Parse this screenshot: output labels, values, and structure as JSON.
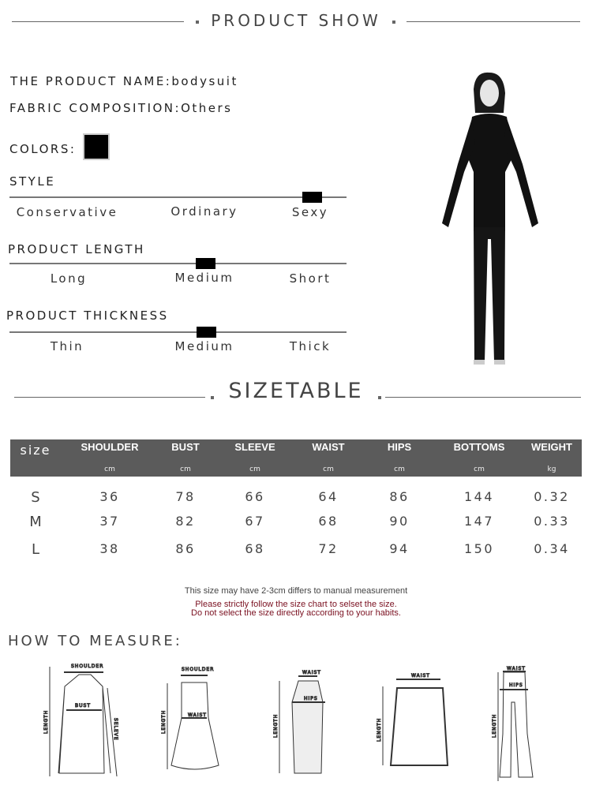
{
  "header": {
    "title": "PRODUCT SHOW"
  },
  "product": {
    "name_label": "THE PRODUCT NAME:",
    "name": "bodysuit",
    "fabric_label": "FABRIC COMPOSITION:",
    "fabric": "Others",
    "colors_label": "COLORS:",
    "color_swatch": "#000000"
  },
  "style": {
    "label": "STYLE",
    "options": [
      "Conservative",
      "Ordinary",
      "Sexy"
    ],
    "selected": "Sexy"
  },
  "length": {
    "label": "PRODUCT LENGTH",
    "options": [
      "Long",
      "Medium",
      "Short"
    ],
    "selected": "Medium"
  },
  "thickness": {
    "label": "PRODUCT THICKNESS",
    "options": [
      "Thin",
      "Medium",
      "Thick"
    ],
    "selected": "Medium"
  },
  "sizetable": {
    "title": "SIZETABLE",
    "headers": [
      "size",
      "SHOULDER",
      "BUST",
      "SLEEVE",
      "WAIST",
      "HIPS",
      "BOTTOMS",
      "WEIGHT"
    ],
    "units": [
      "",
      "cm",
      "cm",
      "cm",
      "cm",
      "cm",
      "cm",
      "kg"
    ],
    "rows": [
      [
        "S",
        "36",
        "78",
        "66",
        "64",
        "86",
        "144",
        "0.32"
      ],
      [
        "M",
        "37",
        "82",
        "67",
        "68",
        "90",
        "147",
        "0.33"
      ],
      [
        "L",
        "38",
        "86",
        "68",
        "72",
        "94",
        "150",
        "0.34"
      ]
    ]
  },
  "notes": {
    "line1": "This size may have 2-3cm differs to manual measurement",
    "line2": "Please strictly follow the size chart to selset the size.",
    "line3": "Do not select the size directly according to your habits.",
    "warn_color": "#7a1020"
  },
  "measure": {
    "title": "HOW TO MEASURE:",
    "labels": {
      "shoulder": "SHOULDER",
      "bust": "BUST",
      "length": "LENGTH",
      "sleeve": "SELEVE",
      "waist": "WAIST",
      "hips": "HIPS"
    }
  }
}
